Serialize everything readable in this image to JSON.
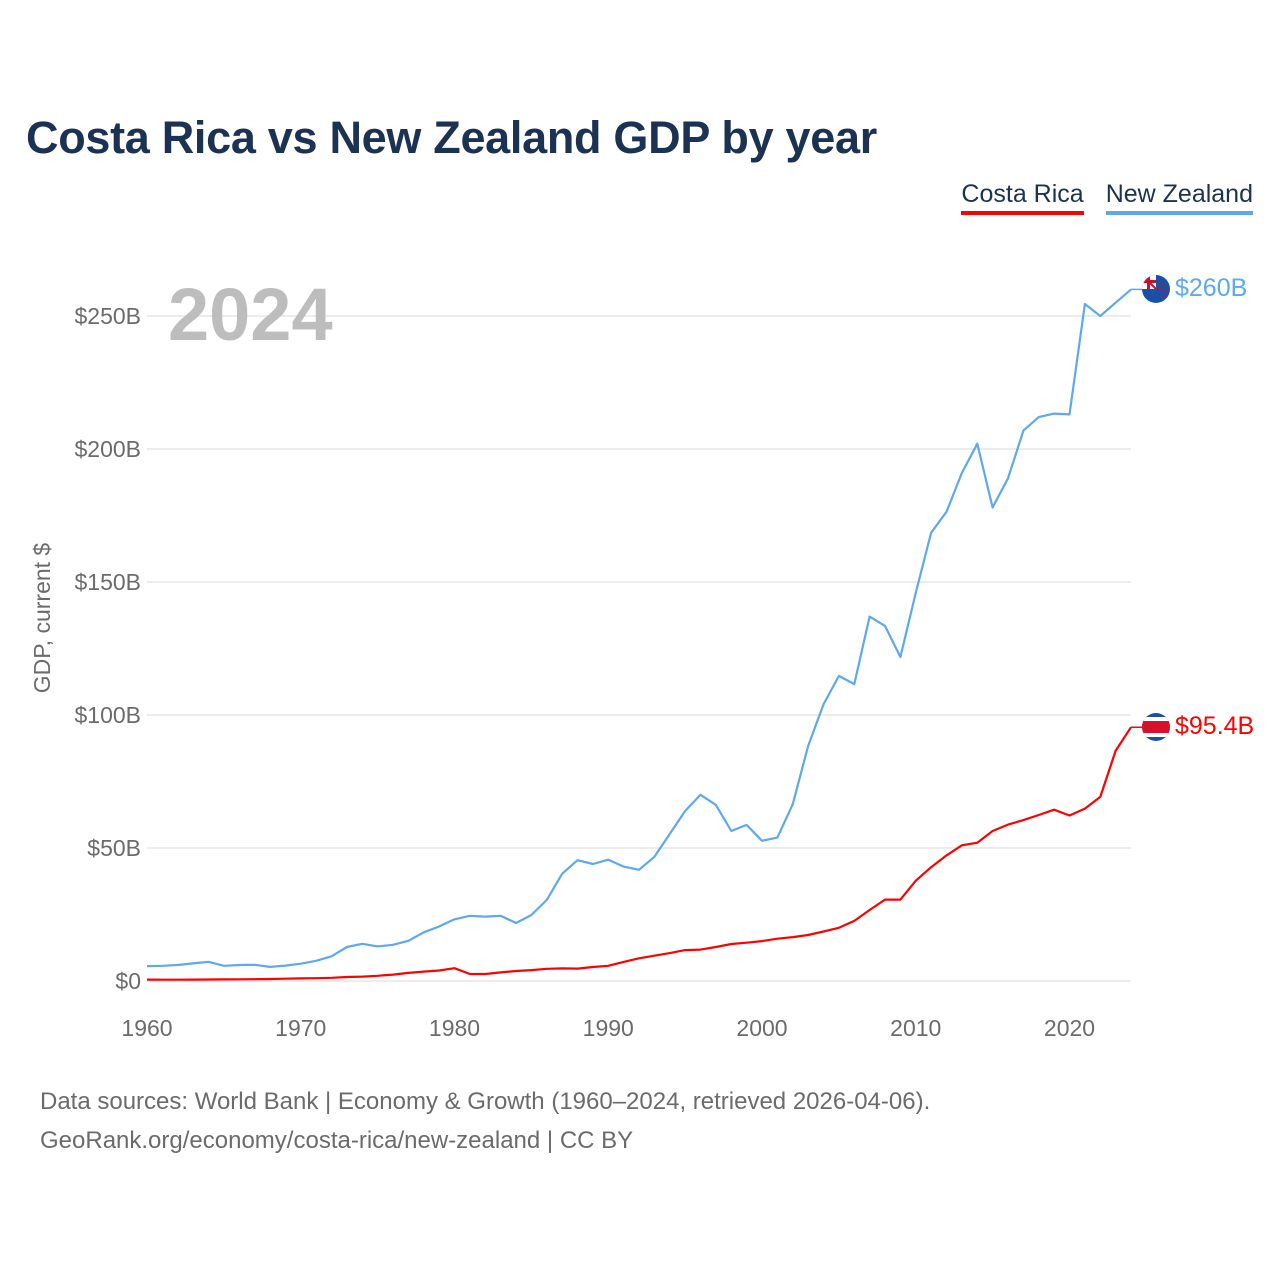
{
  "title": "Costa Rica vs New Zealand GDP by year",
  "legend": [
    {
      "name": "Costa Rica",
      "color": "#ff0000"
    },
    {
      "name": "New Zealand",
      "color": "#5ea8ee"
    }
  ],
  "year_label": "2024",
  "end_labels": {
    "new_zealand": "$260B",
    "costa_rica": "$95.4B"
  },
  "footer": {
    "line1": "Data sources: World Bank | Economy & Growth (1960–2024, retrieved 2026-04-06).",
    "line2": "GeoRank.org/economy/costa-rica/new-zealand | CC BY"
  },
  "chart_data": {
    "type": "line",
    "title": "Costa Rica vs New Zealand GDP by year",
    "xlabel": "",
    "ylabel": "GDP, current $",
    "xlim": [
      1960,
      2024
    ],
    "ylim": [
      0,
      260
    ],
    "x_ticks": [
      1960,
      1970,
      1980,
      1990,
      2000,
      2010,
      2020
    ],
    "x_tick_labels": [
      "1960",
      "1970",
      "1980",
      "1990",
      "2000",
      "2010",
      "2020"
    ],
    "y_ticks": [
      0,
      50,
      100,
      150,
      200,
      250
    ],
    "y_tick_labels": [
      "$0",
      "$50B",
      "$100B",
      "$150B",
      "$200B",
      "$250B"
    ],
    "grid": true,
    "legend_position": "top-right",
    "x": [
      1960,
      1961,
      1962,
      1963,
      1964,
      1965,
      1966,
      1967,
      1968,
      1969,
      1970,
      1971,
      1972,
      1973,
      1974,
      1975,
      1976,
      1977,
      1978,
      1979,
      1980,
      1981,
      1982,
      1983,
      1984,
      1985,
      1986,
      1987,
      1988,
      1989,
      1990,
      1991,
      1992,
      1993,
      1994,
      1995,
      1996,
      1997,
      1998,
      1999,
      2000,
      2001,
      2002,
      2003,
      2004,
      2005,
      2006,
      2007,
      2008,
      2009,
      2010,
      2011,
      2012,
      2013,
      2014,
      2015,
      2016,
      2017,
      2018,
      2019,
      2020,
      2021,
      2022,
      2023,
      2024
    ],
    "series": [
      {
        "name": "New Zealand",
        "unit": "billion USD",
        "color": "#5ea8ee",
        "values": [
          5.6,
          5.7,
          6.0,
          6.6,
          7.2,
          5.7,
          6.0,
          6.1,
          5.3,
          5.8,
          6.5,
          7.6,
          9.3,
          12.8,
          14.0,
          13.0,
          13.6,
          15.1,
          18.3,
          20.5,
          23.2,
          24.5,
          24.2,
          24.5,
          21.8,
          24.8,
          30.5,
          40.3,
          45.4,
          44.0,
          45.6,
          43.0,
          41.8,
          46.7,
          55.3,
          63.9,
          70.0,
          66.2,
          56.4,
          58.7,
          52.7,
          53.9,
          66.5,
          88.3,
          104.0,
          114.7,
          111.6,
          137.0,
          133.5,
          121.8,
          146.0,
          168.5,
          176.4,
          191.0,
          202.0,
          178.0,
          189.0,
          206.9,
          212.0,
          213.3,
          213.0,
          254.5,
          250.0,
          255.0,
          260.0
        ]
      },
      {
        "name": "Costa Rica",
        "unit": "billion USD",
        "color": "#ff0000",
        "values": [
          0.51,
          0.48,
          0.49,
          0.53,
          0.56,
          0.59,
          0.65,
          0.69,
          0.75,
          0.85,
          0.98,
          1.07,
          1.21,
          1.49,
          1.66,
          1.96,
          2.41,
          3.06,
          3.52,
          3.95,
          4.83,
          2.62,
          2.62,
          3.22,
          3.77,
          4.08,
          4.57,
          4.72,
          4.68,
          5.27,
          5.71,
          7.17,
          8.55,
          9.5,
          10.5,
          11.6,
          11.8,
          12.8,
          13.9,
          14.4,
          15.0,
          15.9,
          16.5,
          17.3,
          18.6,
          20.0,
          22.6,
          26.7,
          30.6,
          30.6,
          37.7,
          42.8,
          47.2,
          51.0,
          52.0,
          56.4,
          58.8,
          60.5,
          62.4,
          64.4,
          62.2,
          64.8,
          69.2,
          86.5,
          95.4
        ]
      }
    ]
  }
}
